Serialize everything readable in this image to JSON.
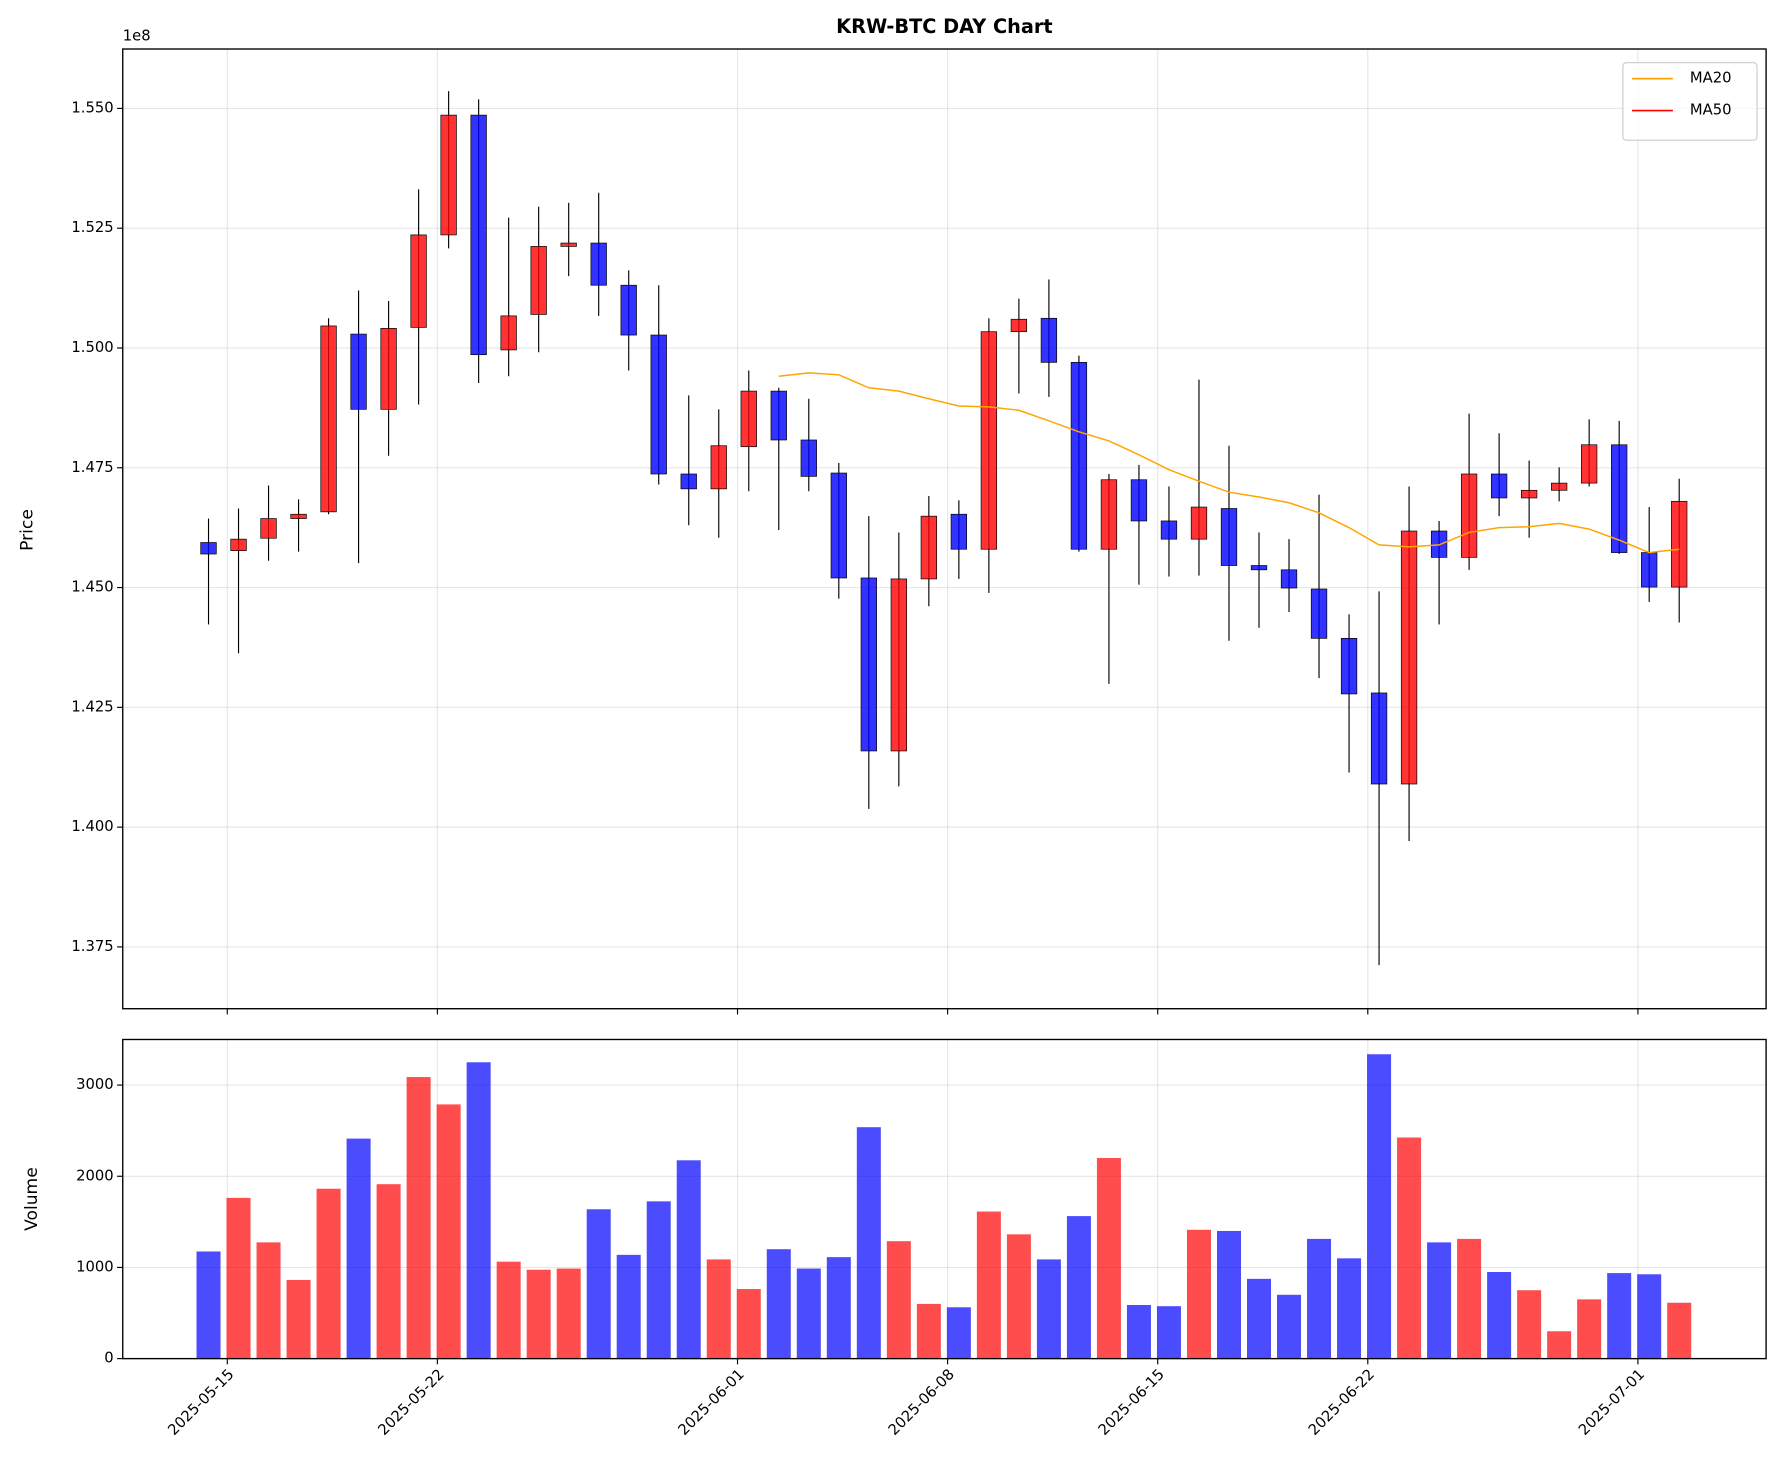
{
  "chart_data": [
    {
      "type": "candlestick",
      "title": "KRW-BTC DAY Chart",
      "y_label": "Price",
      "y_offset_label": "1e8",
      "x": [
        "2025-05-14",
        "2025-05-15",
        "2025-05-16",
        "2025-05-17",
        "2025-05-18",
        "2025-05-19",
        "2025-05-20",
        "2025-05-21",
        "2025-05-22",
        "2025-05-23",
        "2025-05-24",
        "2025-05-25",
        "2025-05-26",
        "2025-05-27",
        "2025-05-28",
        "2025-05-29",
        "2025-05-30",
        "2025-05-31",
        "2025-06-01",
        "2025-06-02",
        "2025-06-03",
        "2025-06-04",
        "2025-06-05",
        "2025-06-06",
        "2025-06-07",
        "2025-06-08",
        "2025-06-09",
        "2025-06-10",
        "2025-06-11",
        "2025-06-12",
        "2025-06-13",
        "2025-06-14",
        "2025-06-15",
        "2025-06-16",
        "2025-06-17",
        "2025-06-18",
        "2025-06-19",
        "2025-06-20",
        "2025-06-21",
        "2025-06-22",
        "2025-06-23",
        "2025-06-24",
        "2025-06-25",
        "2025-06-26",
        "2025-06-27",
        "2025-06-28",
        "2025-06-29",
        "2025-06-30",
        "2025-07-01",
        "2025-07-02"
      ],
      "open": [
        1.4594,
        1.4577,
        1.4603,
        1.4644,
        1.4658,
        1.5029,
        1.4872,
        1.5043,
        1.5236,
        1.5486,
        1.4996,
        1.507,
        1.5212,
        1.5219,
        1.5131,
        1.5027,
        1.4737,
        1.4706,
        1.4794,
        1.491,
        1.4808,
        1.4739,
        1.452,
        1.4159,
        1.4518,
        1.4653,
        1.458,
        1.5034,
        1.5062,
        1.497,
        1.458,
        1.4725,
        1.4639,
        1.4601,
        1.4665,
        1.4546,
        1.4537,
        1.4497,
        1.4394,
        1.428,
        1.409,
        1.4618,
        1.4563,
        1.4737,
        1.4687,
        1.4703,
        1.4718,
        1.4798,
        1.4573,
        1.4501
      ],
      "high": [
        1.4644,
        1.4665,
        1.4713,
        1.4684,
        1.5062,
        1.512,
        1.5098,
        1.5331,
        1.5536,
        1.5519,
        1.5272,
        1.5295,
        1.5303,
        1.5324,
        1.5162,
        1.5131,
        1.4901,
        1.4872,
        1.4953,
        1.4917,
        1.4894,
        1.476,
        1.4649,
        1.4615,
        1.4691,
        1.4682,
        1.5062,
        1.5103,
        1.5143,
        1.4984,
        1.4737,
        1.4756,
        1.4711,
        1.4934,
        1.4796,
        1.4615,
        1.4601,
        1.4694,
        1.4444,
        1.4492,
        1.4711,
        1.4639,
        1.4863,
        1.4822,
        1.4765,
        1.4751,
        1.4851,
        1.4848,
        1.4668,
        1.4727
      ],
      "low": [
        1.4423,
        1.4363,
        1.4556,
        1.4575,
        1.4653,
        1.4551,
        1.4775,
        1.4882,
        1.5208,
        1.4927,
        1.4941,
        1.4991,
        1.515,
        1.5067,
        1.4953,
        1.4715,
        1.463,
        1.4604,
        1.4701,
        1.462,
        1.4701,
        1.4477,
        1.4038,
        1.4085,
        1.4461,
        1.4518,
        1.4489,
        1.4905,
        1.4898,
        1.4575,
        1.4299,
        1.4506,
        1.4523,
        1.4525,
        1.4389,
        1.4416,
        1.4449,
        1.4311,
        1.4114,
        1.3712,
        1.3971,
        1.4423,
        1.4537,
        1.4649,
        1.4604,
        1.468,
        1.4711,
        1.457,
        1.447,
        1.4427
      ],
      "close": [
        1.457,
        1.4601,
        1.4644,
        1.4653,
        1.5046,
        1.4872,
        1.5041,
        1.5236,
        1.5486,
        1.4986,
        1.5067,
        1.5212,
        1.5219,
        1.5131,
        1.5027,
        1.4737,
        1.4706,
        1.4796,
        1.491,
        1.4808,
        1.4732,
        1.452,
        1.4159,
        1.4518,
        1.4649,
        1.458,
        1.5034,
        1.506,
        1.497,
        1.458,
        1.4725,
        1.4639,
        1.4601,
        1.4668,
        1.4546,
        1.4537,
        1.4499,
        1.4394,
        1.4278,
        1.409,
        1.4618,
        1.4563,
        1.4737,
        1.4687,
        1.4703,
        1.4718,
        1.4798,
        1.4573,
        1.4501,
        1.468
      ],
      "up_color": "#ff0000",
      "down_color": "#0000ff",
      "series": [
        {
          "name": "MA20",
          "color": "orange",
          "values": [
            null,
            null,
            null,
            null,
            null,
            null,
            null,
            null,
            null,
            null,
            null,
            null,
            null,
            null,
            null,
            null,
            null,
            null,
            null,
            1.4941,
            1.4948,
            1.4944,
            1.4917,
            1.491,
            1.4894,
            1.4879,
            1.4877,
            1.487,
            1.4848,
            1.4825,
            1.4806,
            1.4777,
            1.4746,
            1.4722,
            1.4699,
            1.4689,
            1.4677,
            1.4656,
            1.4625,
            1.4589,
            1.4585,
            1.4589,
            1.4615,
            1.4625,
            1.4627,
            1.4634,
            1.4622,
            1.4599,
            1.4573,
            1.458
          ]
        },
        {
          "name": "MA50",
          "color": "red",
          "values": [
            null,
            null,
            null,
            null,
            null,
            null,
            null,
            null,
            null,
            null,
            null,
            null,
            null,
            null,
            null,
            null,
            null,
            null,
            null,
            null,
            null,
            null,
            null,
            null,
            null,
            null,
            null,
            null,
            null,
            null,
            null,
            null,
            null,
            null,
            null,
            null,
            null,
            null,
            null,
            null,
            null,
            null,
            null,
            null,
            null,
            null,
            null,
            null,
            null,
            null
          ]
        }
      ],
      "ylim": [
        1.3621,
        1.5624
      ],
      "yticks": [
        {
          "value": 1.375,
          "label": "1.375"
        },
        {
          "value": 1.4,
          "label": "1.400"
        },
        {
          "value": 1.425,
          "label": "1.425"
        },
        {
          "value": 1.45,
          "label": "1.450"
        },
        {
          "value": 1.475,
          "label": "1.475"
        },
        {
          "value": 1.5,
          "label": "1.500"
        },
        {
          "value": 1.525,
          "label": "1.525"
        },
        {
          "value": 1.55,
          "label": "1.550"
        }
      ],
      "grid": true,
      "legend": "upper right"
    },
    {
      "type": "bar",
      "y_label": "Volume",
      "values": [
        1175,
        1763,
        1275,
        863,
        1863,
        2413,
        1913,
        3088,
        2788,
        3250,
        1063,
        975,
        988,
        1638,
        1138,
        1725,
        2175,
        1088,
        763,
        1200,
        988,
        1113,
        2538,
        1288,
        600,
        563,
        1613,
        1363,
        1088,
        1563,
        2200,
        588,
        575,
        1413,
        1400,
        875,
        700,
        1313,
        1100,
        3338,
        2425,
        1275,
        1313,
        950,
        750,
        300,
        650,
        938,
        925,
        613
      ],
      "ylim": [
        0,
        3500
      ],
      "yticks": [
        0,
        1000,
        2000,
        3000
      ],
      "xticks": [
        "2025-05-15",
        "2025-05-22",
        "2025-06-01",
        "2025-06-08",
        "2025-06-15",
        "2025-06-22",
        "2025-07-01"
      ],
      "grid": true
    }
  ]
}
